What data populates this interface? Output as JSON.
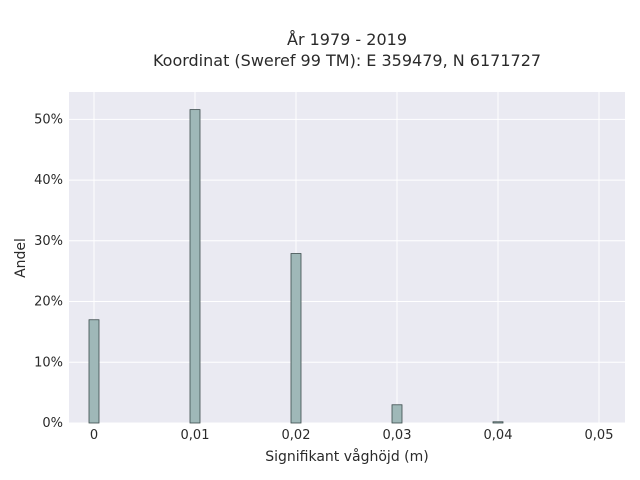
{
  "chart_data": {
    "type": "bar",
    "title_lines": [
      "År 1979 - 2019",
      "Koordinat (Sweref 99 TM): E 359479, N 6171727"
    ],
    "xlabel": "Signifikant våghöjd (m)",
    "ylabel": "Andel",
    "x_ticks": [
      "0",
      "0,01",
      "0,02",
      "0,03",
      "0,04",
      "0,05"
    ],
    "y_ticks": [
      "0%",
      "10%",
      "20%",
      "30%",
      "40%",
      "50%"
    ],
    "x_range": [
      -0.0025,
      0.0525
    ],
    "y_range": [
      0,
      54.5
    ],
    "grid": true,
    "series": [
      {
        "x": [
          0.0,
          0.01,
          0.02,
          0.03,
          0.04
        ],
        "values": [
          17.0,
          51.6,
          27.9,
          3.0,
          0.2
        ]
      }
    ],
    "bar_color": "#9fb8b8",
    "bar_edge_color": "#3a4a4a",
    "plot_background": "#eaeaf2",
    "grid_color": "#ffffff"
  }
}
